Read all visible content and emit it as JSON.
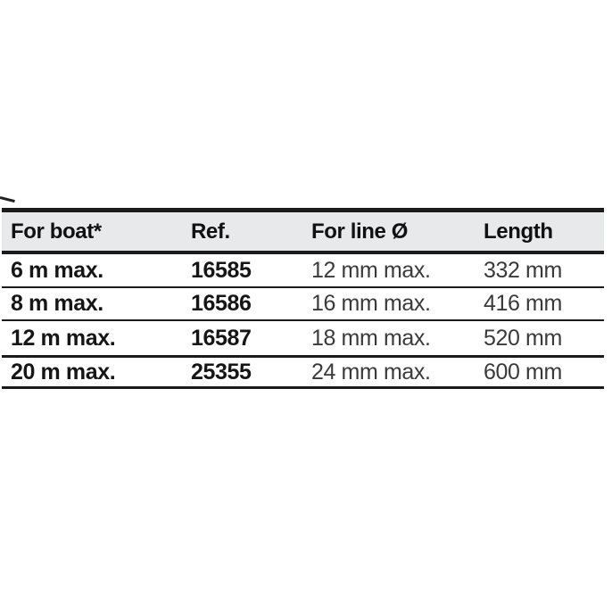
{
  "table": {
    "columns": [
      {
        "label": "For boat*"
      },
      {
        "label": "Ref."
      },
      {
        "label": "For line Ø"
      },
      {
        "label": "Length"
      }
    ],
    "rows": [
      {
        "boat": "6 m max.",
        "ref": "16585",
        "line": "12 mm max.",
        "length": "332 mm"
      },
      {
        "boat": "8 m max.",
        "ref": "16586",
        "line": "16 mm max.",
        "length": "416 mm"
      },
      {
        "boat": "12 m max.",
        "ref": "16587",
        "line": "18 mm max.",
        "length": "520 mm"
      },
      {
        "boat": "20 m max.",
        "ref": "25355",
        "line": "24 mm max.",
        "length": "600 mm"
      }
    ]
  },
  "colors": {
    "header_background": "#e8e9ea",
    "border": "#1b1b1b",
    "header_text": "#111111",
    "bold_cell_text": "#161616",
    "regular_cell_text": "#3a3a3a",
    "page_background": "#ffffff"
  }
}
